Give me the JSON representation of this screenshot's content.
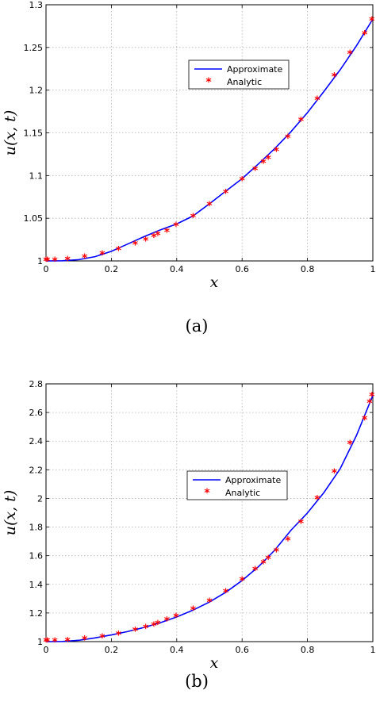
{
  "chart_data": [
    {
      "type": "line",
      "caption": "(a)",
      "xlabel": "x",
      "ylabel": "u(x, t)",
      "xlim": [
        0,
        1
      ],
      "ylim": [
        1,
        1.3
      ],
      "xticks": [
        "0",
        "0.2",
        "0.4",
        "0.6",
        "0.8",
        "1"
      ],
      "yticks": [
        "1",
        "1.05",
        "1.1",
        "1.15",
        "1.2",
        "1.25",
        "1.3"
      ],
      "grid": true,
      "legend_position": "upper-center",
      "series": [
        {
          "name": "Approximate",
          "style": "line",
          "color": "#0000ff",
          "x": [
            0,
            0.05,
            0.1,
            0.15,
            0.2,
            0.25,
            0.3,
            0.35,
            0.4,
            0.45,
            0.5,
            0.55,
            0.6,
            0.65,
            0.7,
            0.75,
            0.8,
            0.85,
            0.9,
            0.95,
            1
          ],
          "y": [
            1,
            1.0002,
            1.0015,
            1.005,
            1.0113,
            1.0198,
            1.0284,
            1.0364,
            1.0433,
            1.0527,
            1.0669,
            1.0817,
            1.0964,
            1.1136,
            1.1316,
            1.1516,
            1.1737,
            1.1983,
            1.2238,
            1.252,
            1.2833
          ]
        },
        {
          "name": "Analytic",
          "style": "marker",
          "color": "#ff0000",
          "x": [
            0,
            0.004,
            0.027,
            0.066,
            0.118,
            0.172,
            0.222,
            0.273,
            0.305,
            0.33,
            0.342,
            0.37,
            0.398,
            0.45,
            0.5,
            0.55,
            0.6,
            0.64,
            0.665,
            0.68,
            0.705,
            0.74,
            0.78,
            0.83,
            0.882,
            0.93,
            0.975,
            0.997
          ],
          "y": [
            1,
            1,
            1.0001,
            1.0011,
            1.0036,
            1.0072,
            1.0125,
            1.0189,
            1.0237,
            1.028,
            1.0301,
            1.034,
            1.041,
            1.051,
            1.0648,
            1.0796,
            1.0942,
            1.1065,
            1.1148,
            1.1193,
            1.1285,
            1.1438,
            1.1638,
            1.1885,
            1.2158,
            1.2422,
            1.2652,
            1.2812
          ]
        }
      ]
    },
    {
      "type": "line",
      "caption": "(b)",
      "xlabel": "x",
      "ylabel": "u(x, t)",
      "xlim": [
        0,
        1
      ],
      "ylim": [
        1,
        2.8
      ],
      "xticks": [
        "0",
        "0.2",
        "0.4",
        "0.6",
        "0.8",
        "1"
      ],
      "yticks": [
        "1",
        "1.2",
        "1.4",
        "1.6",
        "1.8",
        "2",
        "2.2",
        "2.4",
        "2.6",
        "2.8"
      ],
      "grid": true,
      "legend_position": "upper-center",
      "series": [
        {
          "name": "Approximate",
          "style": "line",
          "color": "#0000ff",
          "x": [
            0,
            0.05,
            0.1,
            0.15,
            0.2,
            0.25,
            0.3,
            0.35,
            0.4,
            0.45,
            0.5,
            0.55,
            0.6,
            0.65,
            0.7,
            0.75,
            0.8,
            0.85,
            0.9,
            0.95,
            1
          ],
          "y": [
            1,
            1.0013,
            1.0091,
            1.0261,
            1.0468,
            1.0705,
            1.0988,
            1.1325,
            1.1725,
            1.2199,
            1.2766,
            1.3445,
            1.4267,
            1.5232,
            1.639,
            1.779,
            1.8985,
            2.04,
            2.2066,
            2.44,
            2.72
          ]
        },
        {
          "name": "Analytic",
          "style": "marker",
          "color": "#ff0000",
          "x": [
            0,
            0.004,
            0.027,
            0.066,
            0.118,
            0.172,
            0.222,
            0.273,
            0.305,
            0.33,
            0.342,
            0.37,
            0.398,
            0.45,
            0.5,
            0.55,
            0.6,
            0.64,
            0.665,
            0.68,
            0.705,
            0.74,
            0.78,
            0.83,
            0.882,
            0.93,
            0.975,
            0.99,
            0.997
          ],
          "y": [
            1,
            1,
            1.0008,
            1.0036,
            1.0147,
            1.0284,
            1.0468,
            1.074,
            1.0941,
            1.1102,
            1.1229,
            1.1462,
            1.1714,
            1.2227,
            1.2766,
            1.3445,
            1.4267,
            1.4986,
            1.5449,
            1.5761,
            1.6296,
            1.7072,
            1.827,
            1.9928,
            2.1806,
            2.3794,
            2.5516,
            2.6674,
            2.713
          ]
        }
      ]
    }
  ]
}
